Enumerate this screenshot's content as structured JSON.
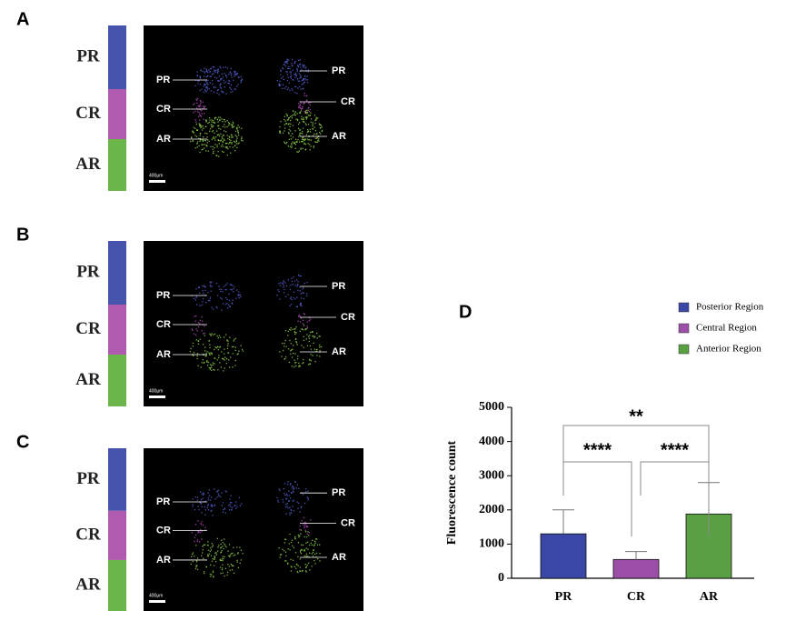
{
  "panels": [
    {
      "label": "A",
      "strip_labels": [
        "PR",
        "CR",
        "AR"
      ],
      "left_labels": [
        "PR",
        "CR",
        "AR"
      ],
      "right_labels": [
        "PR",
        "CR",
        "AR"
      ],
      "scale": "400μm"
    },
    {
      "label": "B",
      "strip_labels": [
        "PR",
        "CR",
        "AR"
      ],
      "left_labels": [
        "PR",
        "CR",
        "AR"
      ],
      "right_labels": [
        "PR",
        "CR",
        "AR"
      ],
      "scale": "400μm"
    },
    {
      "label": "C",
      "strip_labels": [
        "PR",
        "CR",
        "AR"
      ],
      "left_labels": [
        "PR",
        "CR",
        "AR"
      ],
      "right_labels": [
        "PR",
        "CR",
        "AR"
      ],
      "scale": "400μm"
    }
  ],
  "chart_data": {
    "type": "bar",
    "panel_label": "D",
    "ylabel": "Fluorescence count",
    "categories": [
      "PR",
      "CR",
      "AR"
    ],
    "values": [
      1300,
      550,
      1880
    ],
    "errors": [
      700,
      230,
      920
    ],
    "colors": [
      "#3b47a6",
      "#9c4fa6",
      "#5b9f45"
    ],
    "legend": [
      "Posterior Region",
      "Central Region",
      "Anterior Region"
    ],
    "ylim": [
      0,
      5000
    ],
    "yticks": [
      0,
      1000,
      2000,
      3000,
      4000,
      5000
    ],
    "annotations": [
      "**",
      "****",
      "****"
    ]
  }
}
